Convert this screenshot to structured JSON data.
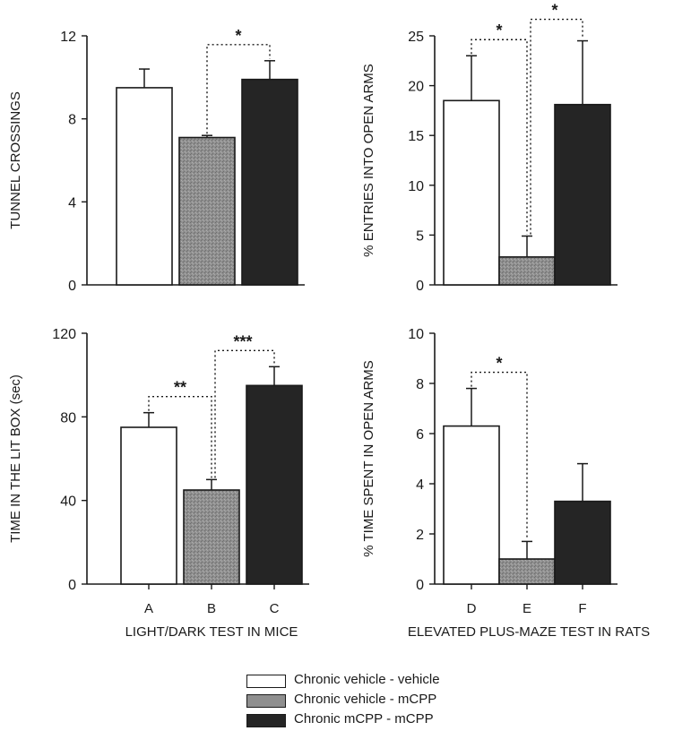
{
  "colors": {
    "vehicle_vehicle": "#ffffff",
    "vehicle_mcpp": "#8a8a8a",
    "mcpp_mcpp": "#252525"
  },
  "legend": [
    {
      "label": "Chronic vehicle - vehicle",
      "color_key": "vehicle_vehicle"
    },
    {
      "label": "Chronic vehicle - mCPP",
      "color_key": "vehicle_mcpp"
    },
    {
      "label": "Chronic mCPP - mCPP",
      "color_key": "mcpp_mcpp"
    }
  ],
  "groups": {
    "left_xlabel": "LIGHT/DARK TEST IN MICE",
    "right_xlabel": "ELEVATED PLUS-MAZE TEST IN RATS"
  },
  "chart_data": [
    {
      "type": "bar",
      "panel": "top-left",
      "categories": [
        "A",
        "B",
        "C"
      ],
      "show_categories": false,
      "values": [
        9.5,
        7.1,
        9.9
      ],
      "errors": [
        0.9,
        0.1,
        0.9
      ],
      "ylabel": "TUNNEL CROSSINGS",
      "ylim": [
        0,
        12
      ],
      "yticks": [
        0,
        4,
        8,
        12
      ],
      "comparisons": [
        {
          "from": 1,
          "to": 2,
          "label": "*"
        }
      ]
    },
    {
      "type": "bar",
      "panel": "top-right",
      "categories": [
        "D",
        "E",
        "F"
      ],
      "show_categories": false,
      "values": [
        18.5,
        2.8,
        18.1
      ],
      "errors": [
        4.5,
        2.1,
        6.4
      ],
      "ylabel": "% ENTRIES INTO OPEN ARMS",
      "ylim": [
        0,
        25
      ],
      "yticks": [
        0,
        5,
        10,
        15,
        20,
        25
      ],
      "comparisons": [
        {
          "from": 0,
          "to": 1,
          "label": "*"
        },
        {
          "from": 1,
          "to": 2,
          "label": "*"
        }
      ]
    },
    {
      "type": "bar",
      "panel": "bottom-left",
      "categories": [
        "A",
        "B",
        "C"
      ],
      "show_categories": true,
      "values": [
        75,
        45,
        95
      ],
      "errors": [
        7,
        5,
        9
      ],
      "ylabel": "TIME IN THE LIT BOX (sec)",
      "ylim": [
        0,
        120
      ],
      "yticks": [
        0,
        40,
        80,
        120
      ],
      "comparisons": [
        {
          "from": 0,
          "to": 1,
          "label": "**"
        },
        {
          "from": 1,
          "to": 2,
          "label": "***"
        }
      ]
    },
    {
      "type": "bar",
      "panel": "bottom-right",
      "categories": [
        "D",
        "E",
        "F"
      ],
      "show_categories": true,
      "values": [
        6.3,
        1.0,
        3.3
      ],
      "errors": [
        1.5,
        0.7,
        1.5
      ],
      "ylabel": "% TIME SPENT IN OPEN ARMS",
      "ylim": [
        0,
        10
      ],
      "yticks": [
        0,
        2,
        4,
        6,
        8,
        10
      ],
      "comparisons": [
        {
          "from": 0,
          "to": 1,
          "label": "*"
        }
      ]
    }
  ]
}
